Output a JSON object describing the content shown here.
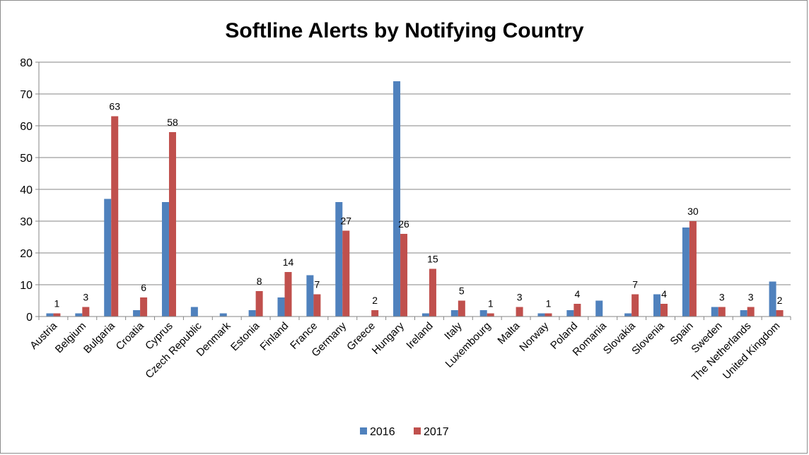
{
  "chart_data": {
    "type": "bar",
    "title": "Softline Alerts by Notifying Country",
    "xlabel": "",
    "ylabel": "",
    "ylim": [
      0,
      80
    ],
    "yticks": [
      0,
      10,
      20,
      30,
      40,
      50,
      60,
      70,
      80
    ],
    "grid": true,
    "legend_position": "bottom",
    "categories": [
      "Austria",
      "Belgium",
      "Bulgaria",
      "Croatia",
      "Cyprus",
      "Czech Republic",
      "Denmark",
      "Estonia",
      "Finland",
      "France",
      "Germany",
      "Greece",
      "Hungary",
      "Ireland",
      "Italy",
      "Luxembourg",
      "Malta",
      "Norway",
      "Poland",
      "Romania",
      "Slovakia",
      "Slovenia",
      "Spain",
      "Sweden",
      "The Netherlands",
      "United Kingdom"
    ],
    "series": [
      {
        "name": "2016",
        "color": "#4f81bd",
        "values": [
          1,
          1,
          37,
          2,
          36,
          3,
          1,
          2,
          6,
          13,
          36,
          0,
          74,
          1,
          2,
          2,
          0,
          1,
          2,
          5,
          1,
          7,
          28,
          3,
          2,
          11
        ]
      },
      {
        "name": "2017",
        "color": "#c0504d",
        "values": [
          1,
          3,
          63,
          6,
          58,
          0,
          0,
          8,
          14,
          7,
          27,
          2,
          26,
          15,
          5,
          1,
          3,
          1,
          4,
          0,
          7,
          4,
          30,
          3,
          3,
          2
        ]
      }
    ],
    "data_labels": {
      "series": "2017",
      "shown_for_nonzero": true
    }
  }
}
